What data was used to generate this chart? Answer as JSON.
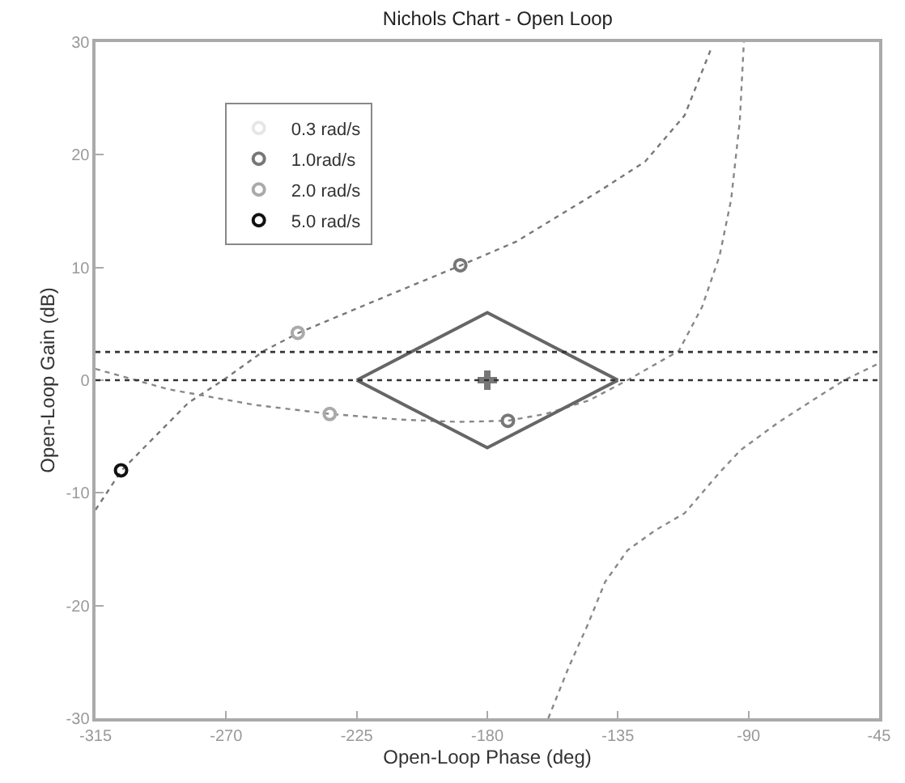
{
  "chart_data": {
    "type": "line",
    "title": "Nichols Chart - Open Loop",
    "xlabel": "Open-Loop Phase (deg)",
    "ylabel": "Open-Loop Gain (dB)",
    "xlim": [
      -315,
      -45
    ],
    "xticks": [
      -315,
      -270,
      -225,
      -180,
      -135,
      -90,
      -45
    ],
    "ylim": [
      -30,
      30
    ],
    "yticks": [
      -30,
      -20,
      -10,
      0,
      10,
      20,
      30
    ],
    "legend": "top left",
    "ref_lines": [
      {
        "axis": "y",
        "value": 0,
        "color": "#333333",
        "line_style": "dotted"
      },
      {
        "axis": "y",
        "value": 2.5,
        "color": "#333333",
        "line_style": "dotted"
      }
    ],
    "series": [
      {
        "line_style": "dotted",
        "color": "#777777",
        "x": [
          -315,
          -306,
          -283,
          -271,
          -257,
          -245,
          -220,
          -189,
          -170,
          -151.5,
          -140,
          -125.6,
          -112,
          -102.6
        ],
        "values": [
          -11.5,
          -8,
          -2,
          0,
          2.6,
          4.2,
          6.9,
          10.2,
          12.3,
          15.2,
          17,
          19.4,
          23.5,
          29.6
        ]
      },
      {
        "line_style": "dotted",
        "color": "#888888",
        "x": [
          -315,
          -290,
          -260,
          -234,
          -210,
          -190,
          -173,
          -160,
          -145,
          -131.7,
          -114,
          -106,
          -100,
          -96,
          -93,
          -91.6
        ],
        "values": [
          1,
          -0.8,
          -2.2,
          -3,
          -3.5,
          -3.7,
          -3.6,
          -3,
          -1.8,
          0,
          2.6,
          6.5,
          11,
          16,
          23,
          30
        ]
      },
      {
        "line_style": "dotted",
        "color": "#888888",
        "x": [
          -159,
          -152,
          -145.4,
          -139.4,
          -131.7,
          -122,
          -112,
          -100,
          -92.7,
          -80,
          -68,
          -57,
          -45
        ],
        "values": [
          -30,
          -25.5,
          -21.7,
          -17.9,
          -15.1,
          -13.3,
          -11.8,
          -8.2,
          -6.2,
          -3.8,
          -1.8,
          0,
          1.5
        ]
      },
      {
        "line_style": "solid",
        "color": "#666666",
        "x": [
          -225,
          -180,
          -135
        ],
        "values": [
          0,
          6,
          0
        ]
      },
      {
        "line_style": "solid",
        "color": "#666666",
        "x": [
          -225,
          -180,
          -135
        ],
        "values": [
          0,
          -6,
          0
        ]
      },
      {
        "type": "scatter",
        "marker": "cross",
        "color": "#777777",
        "x": [
          -180
        ],
        "values": [
          0
        ]
      },
      {
        "type": "scatter",
        "marker": "circle",
        "name": "0.3 rad/s",
        "color": "#e6e6e6",
        "x": [
          null
        ],
        "values": [
          null
        ]
      },
      {
        "type": "scatter",
        "marker": "circle",
        "name": "1.0rad/s",
        "color": "#777777",
        "x": [
          -189.3,
          -172.9
        ],
        "values": [
          10.2,
          -3.6
        ]
      },
      {
        "type": "scatter",
        "marker": "circle",
        "name": "2.0 rad/s",
        "color": "#aaaaaa",
        "x": [
          -245.3,
          -234.3
        ],
        "values": [
          4.2,
          -3.0
        ]
      },
      {
        "type": "scatter",
        "marker": "circle",
        "name": "5.0 rad/s",
        "color": "#111111",
        "x": [
          -306.2
        ],
        "values": [
          -8.0
        ]
      }
    ]
  }
}
